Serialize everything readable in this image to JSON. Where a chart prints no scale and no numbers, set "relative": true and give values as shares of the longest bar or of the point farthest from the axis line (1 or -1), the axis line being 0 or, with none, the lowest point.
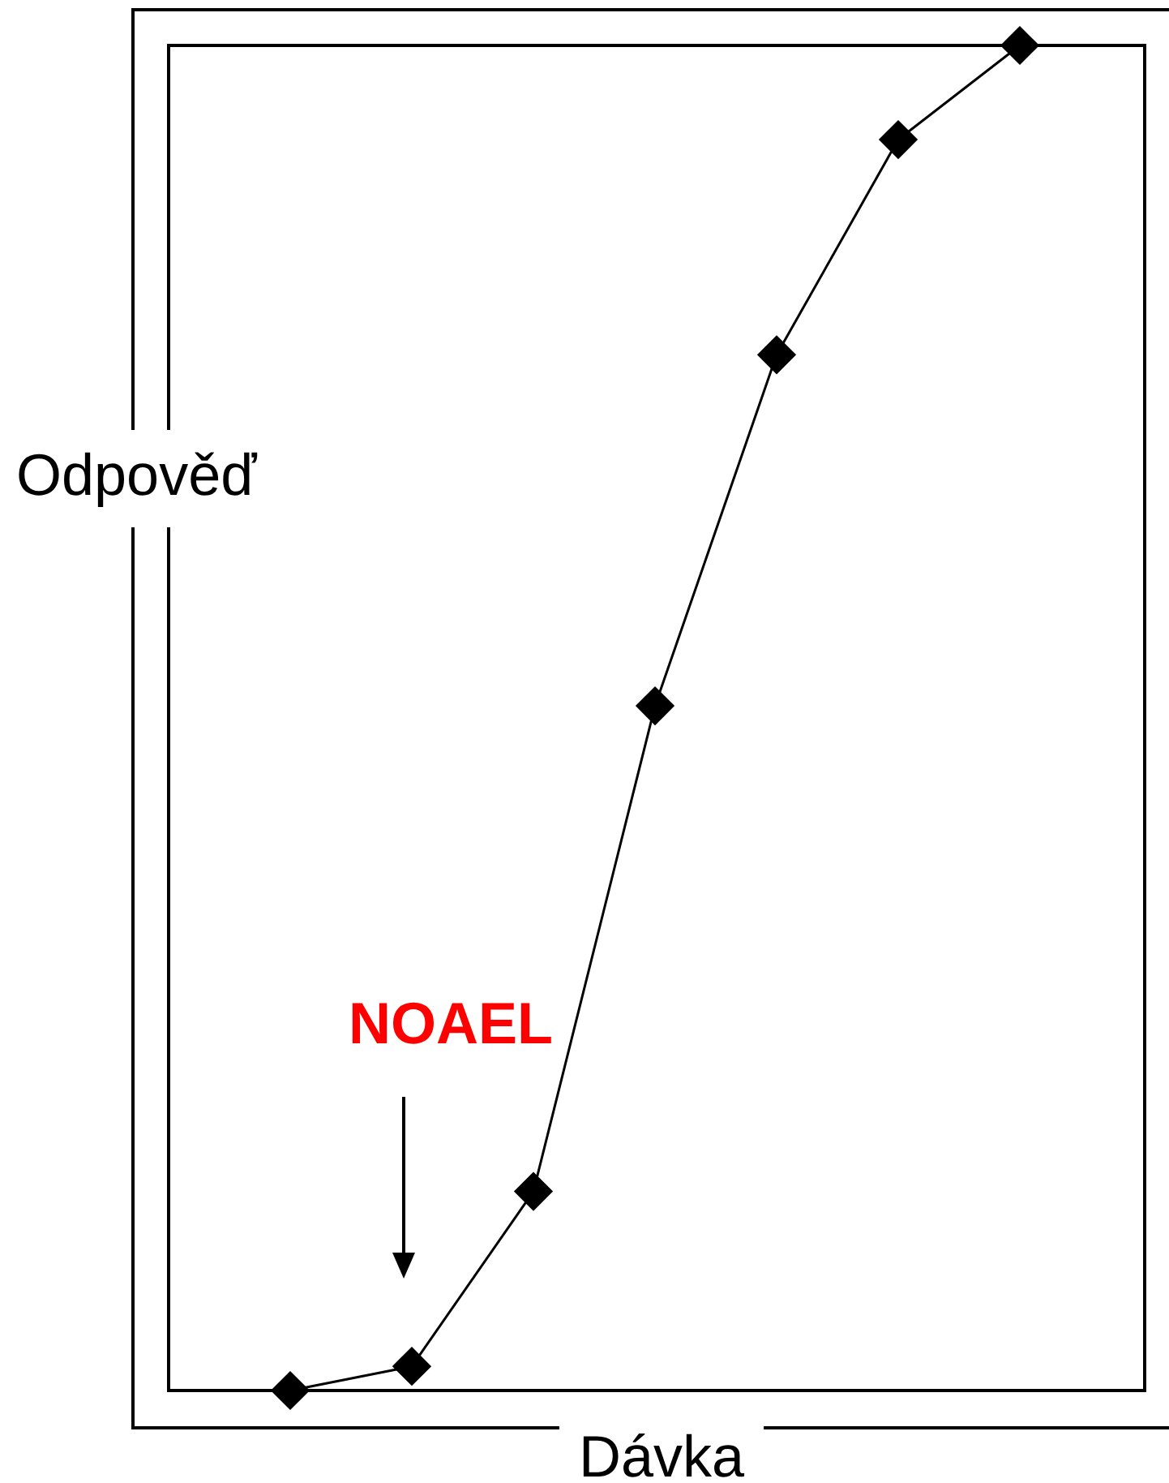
{
  "chart_data": {
    "type": "line",
    "relative": true,
    "xlabel": "Dávka",
    "ylabel": "Odpověď",
    "annotations": [
      "NOAEL"
    ],
    "categories": [
      null,
      null,
      null,
      null,
      null,
      null,
      null
    ],
    "series": [
      {
        "color": "#000000",
        "values": [
          0,
          0.018,
          0.148,
          0.509,
          0.77,
          0.93,
          1
        ]
      }
    ],
    "marker": "diamond",
    "line_style": "solid"
  }
}
